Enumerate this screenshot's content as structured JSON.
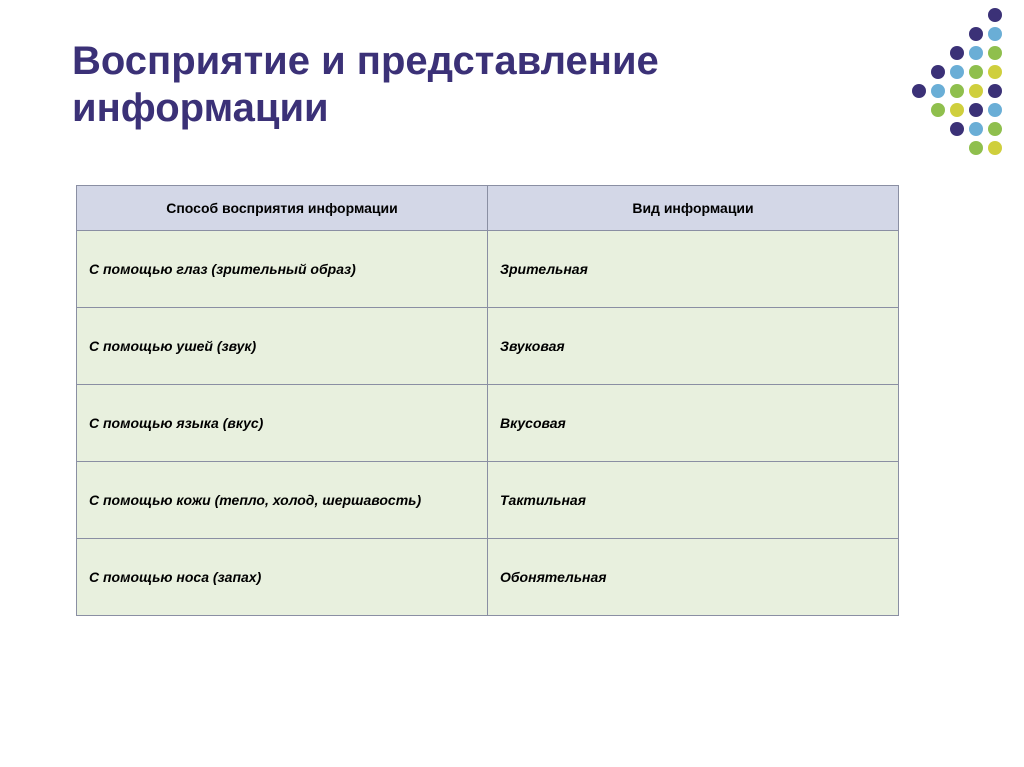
{
  "title_line1": "Восприятие и представление",
  "title_line2": "информации",
  "table": {
    "headers": [
      "Способ восприятия информации",
      "Вид информации"
    ],
    "rows": [
      [
        "С помощью глаз (зрительный образ)",
        "Зрительная"
      ],
      [
        "С помощью ушей (звук)",
        "Звуковая"
      ],
      [
        "С помощью языка (вкус)",
        "Вкусовая"
      ],
      [
        "С помощью кожи (тепло, холод, шершавость)",
        "Тактильная"
      ],
      [
        "С помощью носа (запах)",
        "Обонятельная"
      ]
    ]
  },
  "dot_colors": [
    "",
    "",
    "",
    "",
    "",
    "#3b3177",
    "",
    "",
    "",
    "",
    "#3b3177",
    "#6aaed6",
    "",
    "",
    "",
    "#3b3177",
    "#6aaed6",
    "#8fbf4d",
    "",
    "",
    "#3b3177",
    "#6aaed6",
    "#8fbf4d",
    "#cfcf3d",
    "",
    "#3b3177",
    "#6aaed6",
    "#8fbf4d",
    "#cfcf3d",
    "#3b3177",
    "",
    "",
    "#8fbf4d",
    "#cfcf3d",
    "#3b3177",
    "#6aaed6",
    "",
    "",
    "",
    "#3b3177",
    "#6aaed6",
    "#8fbf4d",
    "",
    "",
    "",
    "",
    "#8fbf4d",
    "#cfcf3d"
  ],
  "colors": {
    "title": "#3b3177",
    "th_bg": "#d3d7e7",
    "td_bg": "#e8f0de",
    "border": "#8a8fa3"
  }
}
